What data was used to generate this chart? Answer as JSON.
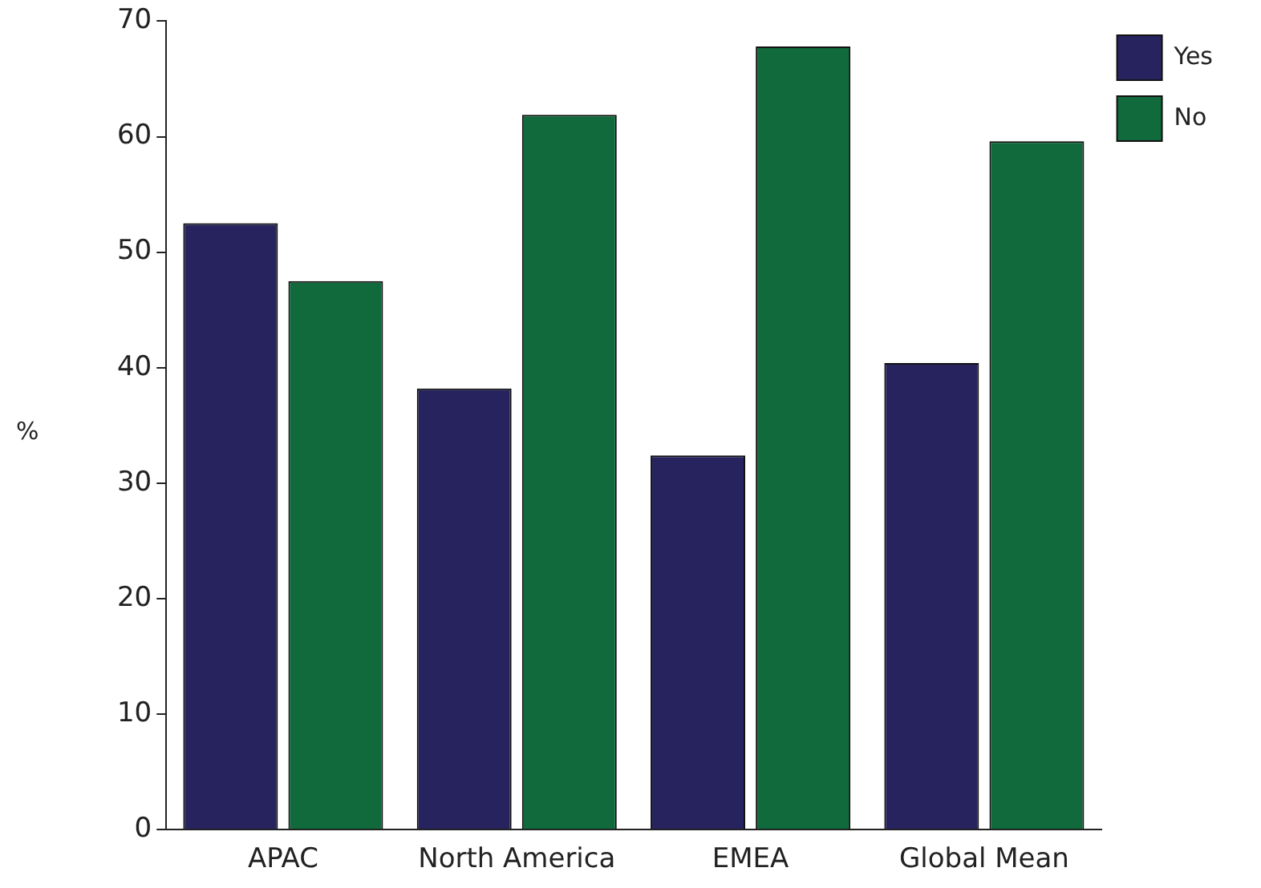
{
  "chart_data": {
    "type": "bar",
    "ylabel": "%",
    "categories": [
      "APAC",
      "North America",
      "EMEA",
      "Global Mean"
    ],
    "series": [
      {
        "name": "Yes",
        "color": "#27235f",
        "values": [
          52.5,
          38.2,
          32.4,
          40.4
        ]
      },
      {
        "name": "No",
        "color": "#106a3b",
        "values": [
          47.5,
          61.9,
          67.8,
          59.6
        ]
      }
    ],
    "ylim": [
      0,
      70
    ],
    "yticks": [
      0,
      10,
      20,
      30,
      40,
      50,
      60,
      70
    ],
    "grid": false,
    "legend": "top right"
  }
}
